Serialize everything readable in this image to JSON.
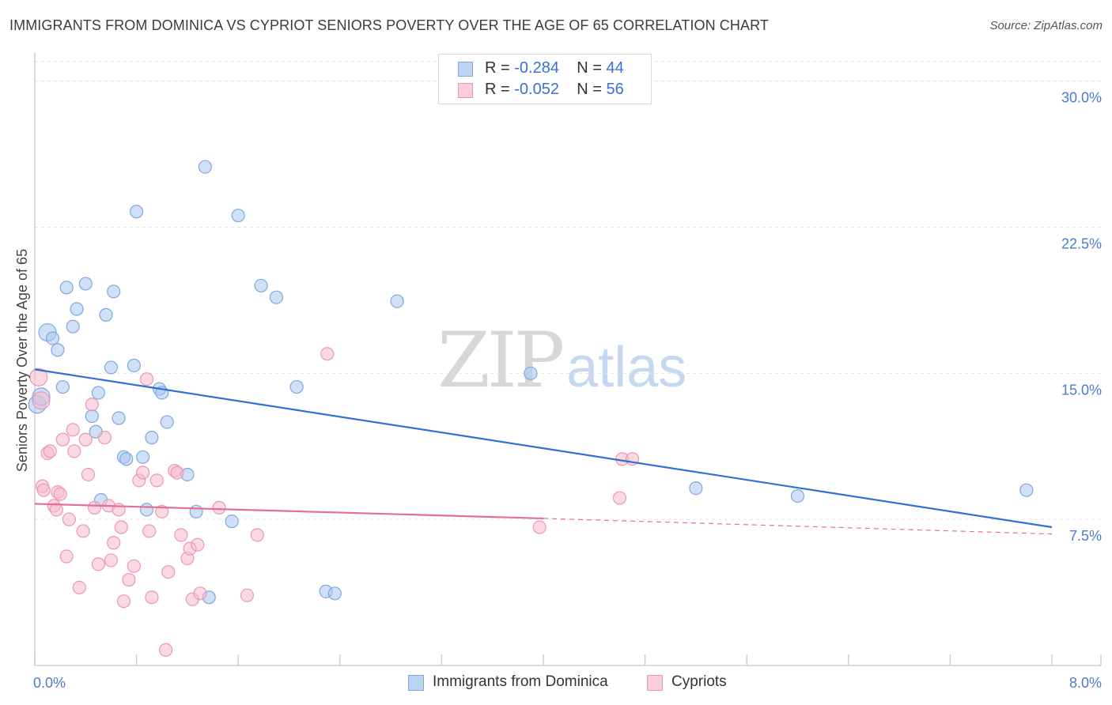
{
  "title": "IMMIGRANTS FROM DOMINICA VS CYPRIOT SENIORS POVERTY OVER THE AGE OF 65 CORRELATION CHART",
  "source": "Source: ZipAtlas.com",
  "watermark": {
    "zip": "ZIP",
    "atlas": "atlas"
  },
  "colors": {
    "blue_fill": "#a9c7ef",
    "blue_stroke": "#7fa8df",
    "blue_line": "#2f6fd6",
    "pink_fill": "#f5b9cc",
    "pink_stroke": "#eb97b3",
    "pink_line": "#e36f98",
    "axis_text": "#4a7bd0",
    "grid": "#e3e3e3"
  },
  "legend": {
    "rows": [
      {
        "r_label": "R = ",
        "r_value": "-0.284",
        "n_label": "N = ",
        "n_value": "44"
      },
      {
        "r_label": "R = ",
        "r_value": "-0.052",
        "n_label": "N = ",
        "n_value": "56"
      }
    ]
  },
  "bottom_legend": [
    {
      "label": "Immigrants from Dominica"
    },
    {
      "label": "Cypriots"
    }
  ],
  "chart_data": {
    "type": "scatter",
    "title": "IMMIGRANTS FROM DOMINICA VS CYPRIOT SENIORS POVERTY OVER THE AGE OF 65 CORRELATION CHART",
    "xlabel": "",
    "ylabel": "Seniors Poverty Over the Age of 65",
    "xlim": [
      0,
      8
    ],
    "ylim": [
      0,
      31
    ],
    "x_tick_labels": [
      {
        "value": 0,
        "label": "0.0%"
      },
      {
        "value": 8,
        "label": "8.0%"
      }
    ],
    "y_tick_labels": [
      {
        "value": 7.5,
        "label": "7.5%"
      },
      {
        "value": 15,
        "label": "15.0%"
      },
      {
        "value": 22.5,
        "label": "22.5%"
      },
      {
        "value": 30,
        "label": "30.0%"
      }
    ],
    "series": [
      {
        "name": "Immigrants from Dominica",
        "color": "blue",
        "points": [
          [
            0.02,
            13.4
          ],
          [
            0.05,
            13.8
          ],
          [
            0.1,
            17.1
          ],
          [
            0.14,
            16.8
          ],
          [
            0.18,
            16.2
          ],
          [
            0.22,
            14.3
          ],
          [
            0.25,
            19.4
          ],
          [
            0.3,
            17.4
          ],
          [
            0.33,
            18.3
          ],
          [
            0.4,
            19.6
          ],
          [
            0.45,
            12.8
          ],
          [
            0.52,
            8.5
          ],
          [
            0.56,
            18.0
          ],
          [
            0.6,
            15.3
          ],
          [
            0.62,
            19.2
          ],
          [
            0.66,
            12.7
          ],
          [
            0.7,
            10.7
          ],
          [
            0.72,
            10.6
          ],
          [
            0.78,
            15.4
          ],
          [
            0.8,
            23.3
          ],
          [
            0.85,
            10.7
          ],
          [
            0.88,
            8.0
          ],
          [
            0.92,
            11.7
          ],
          [
            0.98,
            14.2
          ],
          [
            1.0,
            14.0
          ],
          [
            1.04,
            12.5
          ],
          [
            1.2,
            9.8
          ],
          [
            1.27,
            7.9
          ],
          [
            1.34,
            25.6
          ],
          [
            1.37,
            3.5
          ],
          [
            1.55,
            7.4
          ],
          [
            1.6,
            23.1
          ],
          [
            1.78,
            19.5
          ],
          [
            1.9,
            18.9
          ],
          [
            2.06,
            14.3
          ],
          [
            2.29,
            3.8
          ],
          [
            2.36,
            3.7
          ],
          [
            2.85,
            18.7
          ],
          [
            3.9,
            15.0
          ],
          [
            5.2,
            9.1
          ],
          [
            6.0,
            8.7
          ],
          [
            7.8,
            9.0
          ],
          [
            0.48,
            12.0
          ],
          [
            0.5,
            14.0
          ]
        ],
        "trend": {
          "x0": 0,
          "y0": 15.2,
          "x1": 8,
          "y1": 7.1
        }
      },
      {
        "name": "Cypriots",
        "color": "pink",
        "points": [
          [
            0.03,
            14.8
          ],
          [
            0.05,
            13.6
          ],
          [
            0.06,
            9.2
          ],
          [
            0.07,
            9.0
          ],
          [
            0.1,
            10.9
          ],
          [
            0.12,
            11.0
          ],
          [
            0.15,
            8.2
          ],
          [
            0.17,
            8.0
          ],
          [
            0.18,
            8.9
          ],
          [
            0.2,
            8.8
          ],
          [
            0.22,
            11.6
          ],
          [
            0.25,
            5.6
          ],
          [
            0.27,
            7.5
          ],
          [
            0.3,
            12.1
          ],
          [
            0.31,
            11.0
          ],
          [
            0.35,
            4.0
          ],
          [
            0.38,
            6.9
          ],
          [
            0.4,
            11.6
          ],
          [
            0.42,
            9.8
          ],
          [
            0.45,
            13.4
          ],
          [
            0.47,
            8.1
          ],
          [
            0.5,
            5.2
          ],
          [
            0.55,
            11.7
          ],
          [
            0.58,
            8.2
          ],
          [
            0.6,
            5.4
          ],
          [
            0.62,
            6.3
          ],
          [
            0.66,
            8.0
          ],
          [
            0.68,
            7.1
          ],
          [
            0.7,
            3.3
          ],
          [
            0.74,
            4.4
          ],
          [
            0.78,
            5.1
          ],
          [
            0.82,
            9.5
          ],
          [
            0.85,
            9.9
          ],
          [
            0.88,
            14.7
          ],
          [
            0.9,
            6.9
          ],
          [
            0.92,
            3.5
          ],
          [
            0.96,
            9.5
          ],
          [
            1.0,
            7.9
          ],
          [
            1.03,
            0.8
          ],
          [
            1.05,
            4.8
          ],
          [
            1.1,
            10.0
          ],
          [
            1.12,
            9.9
          ],
          [
            1.15,
            6.7
          ],
          [
            1.2,
            5.5
          ],
          [
            1.22,
            6.0
          ],
          [
            1.24,
            3.4
          ],
          [
            1.28,
            6.2
          ],
          [
            1.3,
            3.7
          ],
          [
            1.45,
            8.1
          ],
          [
            1.67,
            3.6
          ],
          [
            1.75,
            6.7
          ],
          [
            2.3,
            16.0
          ],
          [
            3.97,
            7.1
          ],
          [
            4.6,
            8.6
          ],
          [
            4.62,
            10.6
          ],
          [
            4.7,
            10.6
          ]
        ],
        "trend": {
          "x0": 0,
          "y0": 8.3,
          "x1": 4.0,
          "y1": 7.55,
          "dash_x1": 8,
          "dash_y1": 6.75
        }
      }
    ]
  }
}
